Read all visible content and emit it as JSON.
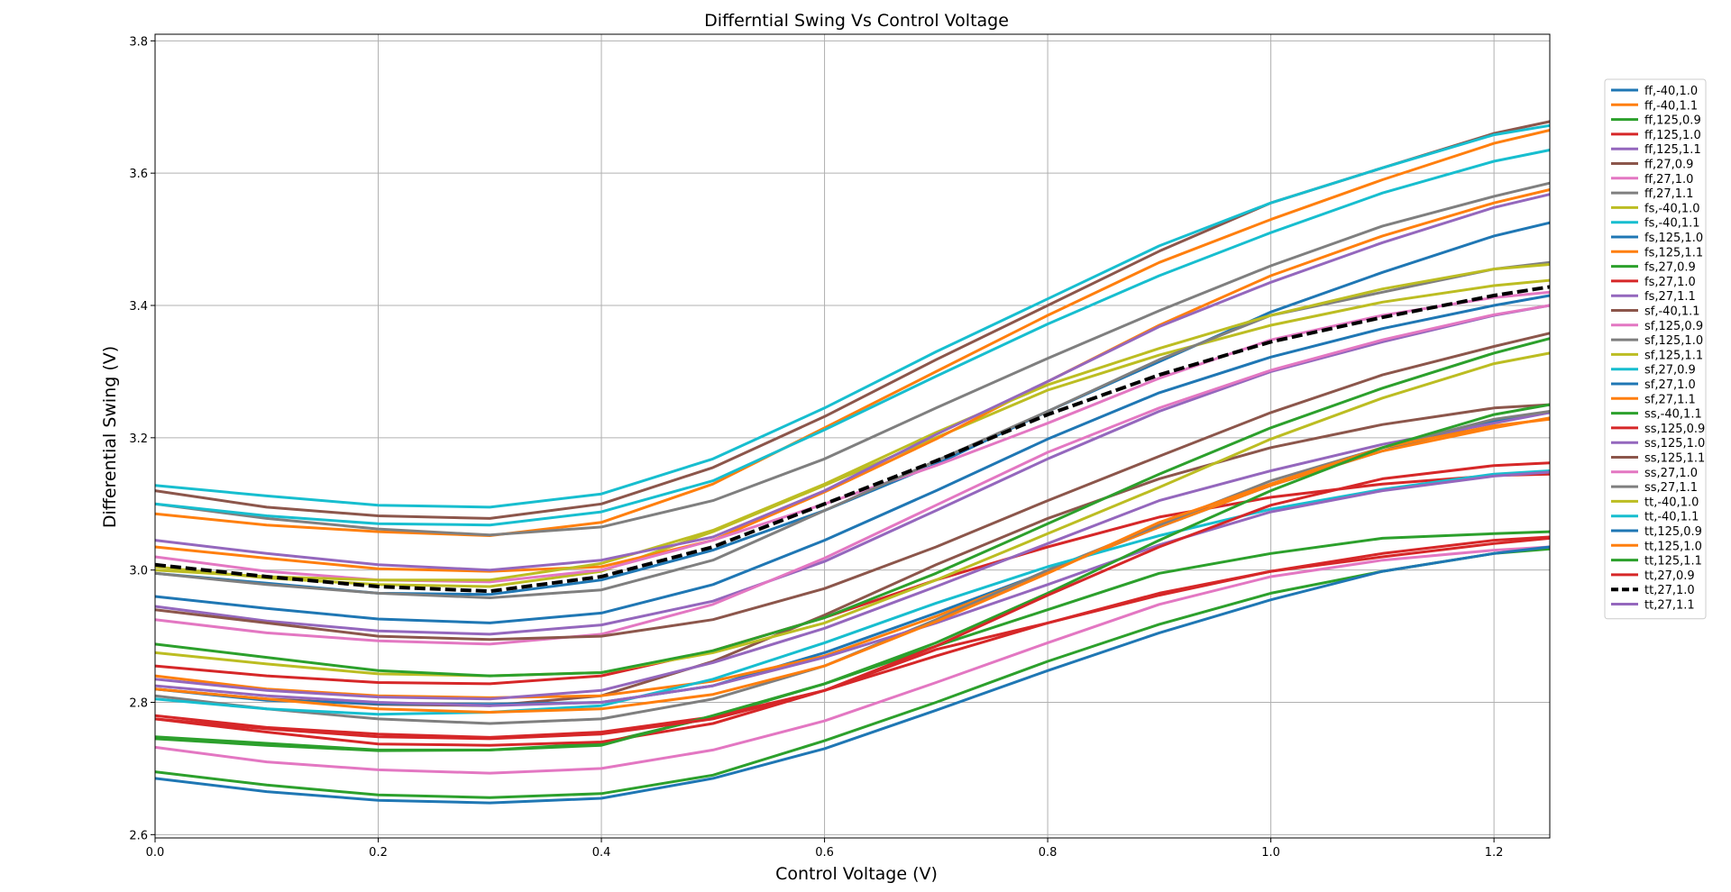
{
  "chart_data": {
    "type": "line",
    "title": "Differntial Swing Vs Control Voltage",
    "xlabel": "Control Voltage (V)",
    "ylabel": "Differential Swing (V)",
    "xlim": [
      0.0,
      1.25
    ],
    "ylim": [
      2.595,
      3.81
    ],
    "xticks": [
      "0.0",
      "0.2",
      "0.4",
      "0.6",
      "0.8",
      "1.0",
      "1.2"
    ],
    "yticks": [
      "2.6",
      "2.8",
      "3.0",
      "3.2",
      "3.4",
      "3.6",
      "3.8"
    ],
    "grid": true,
    "legend_position": "right",
    "x": [
      0.0,
      0.1,
      0.2,
      0.3,
      0.4,
      0.5,
      0.6,
      0.7,
      0.8,
      0.9,
      1.0,
      1.1,
      1.2,
      1.25
    ],
    "series": [
      {
        "name": "ff,-40,1.0",
        "color": "#1f77b4",
        "style": "solid",
        "values": [
          2.995,
          2.98,
          2.965,
          2.963,
          2.985,
          3.03,
          3.09,
          3.16,
          3.24,
          3.315,
          3.39,
          3.45,
          3.505,
          3.525
        ]
      },
      {
        "name": "ff,-40,1.1",
        "color": "#ff7f0e",
        "style": "solid",
        "values": [
          3.085,
          3.068,
          3.058,
          3.052,
          3.072,
          3.13,
          3.215,
          3.3,
          3.385,
          3.465,
          3.53,
          3.59,
          3.645,
          3.665
        ]
      },
      {
        "name": "ff,125,0.9",
        "color": "#2ca02c",
        "style": "solid",
        "values": [
          2.745,
          2.735,
          2.727,
          2.728,
          2.738,
          2.778,
          2.828,
          2.885,
          2.94,
          2.995,
          3.025,
          3.048,
          3.055,
          3.058
        ]
      },
      {
        "name": "ff,125,1.0",
        "color": "#d62728",
        "style": "solid",
        "values": [
          2.855,
          2.84,
          2.83,
          2.828,
          2.84,
          2.878,
          2.928,
          2.985,
          3.035,
          3.08,
          3.11,
          3.13,
          3.143,
          3.145
        ]
      },
      {
        "name": "ff,125,1.1",
        "color": "#9467bd",
        "style": "solid",
        "values": [
          2.945,
          2.923,
          2.908,
          2.903,
          2.917,
          2.953,
          3.013,
          3.09,
          3.168,
          3.24,
          3.3,
          3.345,
          3.385,
          3.4
        ]
      },
      {
        "name": "ff,27,0.9",
        "color": "#8c564b",
        "style": "solid",
        "values": [
          2.82,
          2.805,
          2.797,
          2.795,
          2.81,
          2.862,
          2.932,
          3.008,
          3.078,
          3.138,
          3.185,
          3.22,
          3.245,
          3.25
        ]
      },
      {
        "name": "ff,27,1.0",
        "color": "#e377c2",
        "style": "solid",
        "values": [
          2.925,
          2.905,
          2.893,
          2.888,
          2.903,
          2.948,
          3.018,
          3.098,
          3.178,
          3.245,
          3.302,
          3.348,
          3.386,
          3.4
        ]
      },
      {
        "name": "ff,27,1.1",
        "color": "#7f7f7f",
        "style": "solid",
        "values": [
          3.1,
          3.078,
          3.062,
          3.053,
          3.065,
          3.105,
          3.168,
          3.245,
          3.32,
          3.392,
          3.46,
          3.52,
          3.565,
          3.585
        ]
      },
      {
        "name": "fs,-40,1.0",
        "color": "#bcbd22",
        "style": "solid",
        "values": [
          3.005,
          2.988,
          2.978,
          2.975,
          2.998,
          3.058,
          3.128,
          3.2,
          3.272,
          3.325,
          3.37,
          3.405,
          3.43,
          3.438
        ]
      },
      {
        "name": "fs,-40,1.1",
        "color": "#17becf",
        "style": "solid",
        "values": [
          3.1,
          3.082,
          3.07,
          3.068,
          3.088,
          3.135,
          3.212,
          3.293,
          3.372,
          3.445,
          3.51,
          3.57,
          3.618,
          3.635
        ]
      },
      {
        "name": "fs,125,1.0",
        "color": "#1f77b4",
        "style": "solid",
        "values": [
          2.82,
          2.803,
          2.798,
          2.797,
          2.8,
          2.825,
          2.875,
          2.935,
          2.998,
          3.065,
          3.128,
          3.18,
          3.225,
          3.238
        ]
      },
      {
        "name": "fs,125,1.1",
        "color": "#ff7f0e",
        "style": "solid",
        "values": [
          2.84,
          2.82,
          2.81,
          2.807,
          2.81,
          2.832,
          2.87,
          2.93,
          2.998,
          3.065,
          3.128,
          3.18,
          3.215,
          3.23
        ]
      },
      {
        "name": "fs,27,0.9",
        "color": "#2ca02c",
        "style": "solid",
        "values": [
          2.695,
          2.675,
          2.66,
          2.656,
          2.662,
          2.69,
          2.742,
          2.8,
          2.862,
          2.918,
          2.965,
          2.998,
          3.025,
          3.032
        ]
      },
      {
        "name": "fs,27,1.0",
        "color": "#d62728",
        "style": "solid",
        "values": [
          2.78,
          2.762,
          2.752,
          2.747,
          2.755,
          2.778,
          2.818,
          2.87,
          2.92,
          2.962,
          2.998,
          3.025,
          3.045,
          3.05
        ]
      },
      {
        "name": "fs,27,1.1",
        "color": "#9467bd",
        "style": "solid",
        "values": [
          2.835,
          2.818,
          2.808,
          2.805,
          2.818,
          2.86,
          2.912,
          2.975,
          3.04,
          3.105,
          3.15,
          3.19,
          3.222,
          3.238
        ]
      },
      {
        "name": "sf,-40,1.1",
        "color": "#8c564b",
        "style": "solid",
        "values": [
          3.12,
          3.095,
          3.082,
          3.078,
          3.1,
          3.155,
          3.232,
          3.318,
          3.4,
          3.482,
          3.555,
          3.608,
          3.66,
          3.678
        ]
      },
      {
        "name": "sf,125,0.9",
        "color": "#e377c2",
        "style": "solid",
        "values": [
          2.732,
          2.71,
          2.698,
          2.693,
          2.7,
          2.728,
          2.772,
          2.83,
          2.89,
          2.948,
          2.99,
          3.015,
          3.03,
          3.035
        ]
      },
      {
        "name": "sf,125,1.0",
        "color": "#7f7f7f",
        "style": "solid",
        "values": [
          2.81,
          2.79,
          2.775,
          2.768,
          2.775,
          2.805,
          2.855,
          2.925,
          3.0,
          3.068,
          3.135,
          3.185,
          3.228,
          3.24
        ]
      },
      {
        "name": "sf,125,1.1",
        "color": "#bcbd22",
        "style": "solid",
        "values": [
          2.875,
          2.858,
          2.843,
          2.84,
          2.845,
          2.875,
          2.92,
          2.985,
          3.055,
          3.125,
          3.198,
          3.26,
          3.312,
          3.328
        ]
      },
      {
        "name": "sf,27,0.9",
        "color": "#17becf",
        "style": "solid",
        "values": [
          2.805,
          2.79,
          2.782,
          2.785,
          2.795,
          2.835,
          2.89,
          2.95,
          3.005,
          3.052,
          3.092,
          3.122,
          3.145,
          3.15
        ]
      },
      {
        "name": "sf,27,1.0",
        "color": "#1f77b4",
        "style": "solid",
        "values": [
          2.96,
          2.942,
          2.926,
          2.92,
          2.935,
          2.978,
          3.045,
          3.12,
          3.198,
          3.268,
          3.322,
          3.365,
          3.4,
          3.415
        ]
      },
      {
        "name": "sf,27,1.1",
        "color": "#ff7f0e",
        "style": "solid",
        "values": [
          3.035,
          3.018,
          3.002,
          2.998,
          3.005,
          3.045,
          3.118,
          3.198,
          3.285,
          3.37,
          3.445,
          3.505,
          3.555,
          3.575
        ]
      },
      {
        "name": "ss,-40,1.1",
        "color": "#2ca02c",
        "style": "solid",
        "values": [
          2.888,
          2.868,
          2.848,
          2.84,
          2.845,
          2.878,
          2.928,
          2.995,
          3.07,
          3.145,
          3.215,
          3.275,
          3.328,
          3.35
        ]
      },
      {
        "name": "ss,125,0.9",
        "color": "#d62728",
        "style": "solid",
        "values": [
          2.775,
          2.755,
          2.737,
          2.735,
          2.74,
          2.768,
          2.818,
          2.88,
          2.92,
          2.965,
          2.998,
          3.02,
          3.04,
          3.048
        ]
      },
      {
        "name": "ss,125,1.0",
        "color": "#9467bd",
        "style": "solid",
        "values": [
          2.825,
          2.81,
          2.8,
          2.795,
          2.8,
          2.825,
          2.868,
          2.92,
          2.978,
          3.038,
          3.088,
          3.12,
          3.142,
          3.148
        ]
      },
      {
        "name": "ss,125,1.1",
        "color": "#8c564b",
        "style": "solid",
        "values": [
          2.94,
          2.92,
          2.9,
          2.895,
          2.9,
          2.925,
          2.972,
          3.035,
          3.105,
          3.172,
          3.238,
          3.295,
          3.338,
          3.358
        ]
      },
      {
        "name": "ss,27,1.0",
        "color": "#e377c2",
        "style": "solid",
        "values": [
          3.02,
          2.998,
          2.985,
          2.982,
          3.0,
          3.045,
          3.1,
          3.158,
          3.222,
          3.29,
          3.348,
          3.385,
          3.412,
          3.42
        ]
      },
      {
        "name": "ss,27,1.1",
        "color": "#7f7f7f",
        "style": "solid",
        "values": [
          2.995,
          2.978,
          2.965,
          2.958,
          2.97,
          3.015,
          3.09,
          3.165,
          3.24,
          3.318,
          3.385,
          3.42,
          3.455,
          3.465
        ]
      },
      {
        "name": "tt,-40,1.0",
        "color": "#bcbd22",
        "style": "solid",
        "values": [
          3.0,
          2.99,
          2.985,
          2.985,
          3.01,
          3.06,
          3.13,
          3.208,
          3.28,
          3.335,
          3.385,
          3.425,
          3.455,
          3.462
        ]
      },
      {
        "name": "tt,-40,1.1",
        "color": "#17becf",
        "style": "solid",
        "values": [
          3.128,
          3.112,
          3.098,
          3.095,
          3.115,
          3.168,
          3.245,
          3.33,
          3.41,
          3.49,
          3.555,
          3.608,
          3.658,
          3.672
        ]
      },
      {
        "name": "tt,125,0.9",
        "color": "#1f77b4",
        "style": "solid",
        "values": [
          2.685,
          2.665,
          2.652,
          2.648,
          2.655,
          2.685,
          2.73,
          2.788,
          2.848,
          2.905,
          2.955,
          2.998,
          3.025,
          3.035
        ]
      },
      {
        "name": "tt,125,1.0",
        "color": "#ff7f0e",
        "style": "solid",
        "values": [
          2.82,
          2.805,
          2.79,
          2.785,
          2.79,
          2.812,
          2.855,
          2.922,
          2.995,
          3.072,
          3.13,
          3.185,
          3.218,
          3.228
        ]
      },
      {
        "name": "tt,125,1.1",
        "color": "#2ca02c",
        "style": "solid",
        "values": [
          2.748,
          2.738,
          2.728,
          2.728,
          2.735,
          2.78,
          2.828,
          2.89,
          2.965,
          3.045,
          3.12,
          3.185,
          3.235,
          3.25
        ]
      },
      {
        "name": "tt,27,0.9",
        "color": "#d62728",
        "style": "solid",
        "values": [
          2.775,
          2.76,
          2.748,
          2.745,
          2.752,
          2.775,
          2.818,
          2.885,
          2.962,
          3.035,
          3.098,
          3.138,
          3.158,
          3.162
        ]
      },
      {
        "name": "tt,27,1.0",
        "color": "#000000",
        "style": "dashed",
        "values": [
          3.008,
          2.99,
          2.975,
          2.968,
          2.99,
          3.035,
          3.1,
          3.165,
          3.235,
          3.295,
          3.345,
          3.382,
          3.415,
          3.428
        ]
      },
      {
        "name": "tt,27,1.1",
        "color": "#9467bd",
        "style": "solid",
        "values": [
          3.045,
          3.025,
          3.008,
          3.0,
          3.015,
          3.05,
          3.12,
          3.205,
          3.285,
          3.368,
          3.435,
          3.495,
          3.548,
          3.568
        ]
      }
    ]
  }
}
